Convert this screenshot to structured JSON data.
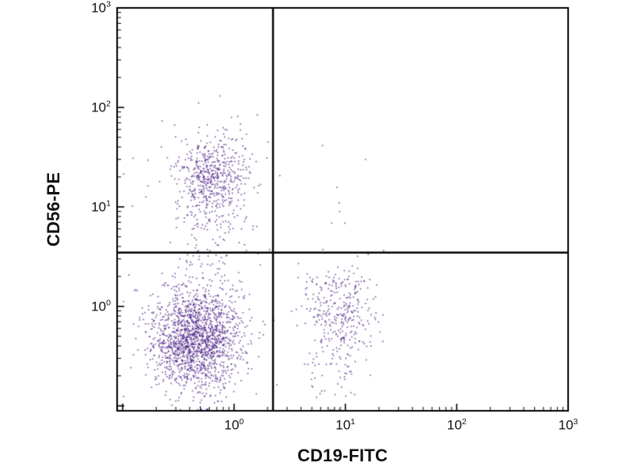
{
  "figure": {
    "background": "#ffffff",
    "dot_color": "#4a1d85",
    "axis_color": "#000000"
  },
  "chart_data": {
    "type": "scatter",
    "title": "",
    "xlabel": "CD19-FITC",
    "ylabel": "CD56-PE",
    "x_scale": "log10",
    "y_scale": "log10",
    "x_range_log": [
      -1.05,
      3
    ],
    "y_range_log": [
      -1.05,
      3
    ],
    "tick_base": "10",
    "x_tick_exponents": [
      0,
      1,
      2,
      3
    ],
    "y_tick_exponents": [
      0,
      1,
      2,
      3
    ],
    "grid": false,
    "legend": "none",
    "quadrant_gate_log": {
      "x": 0.35,
      "y": 0.54
    },
    "populations": [
      {
        "name": "CD19-neg CD56-neg lymphocytes (lower left dense cluster)",
        "dist": "gaussian",
        "n": 1700,
        "center_log": [
          -0.33,
          -0.33
        ],
        "sigma_log": [
          0.21,
          0.26
        ]
      },
      {
        "name": "CD56-pos NK cells (upper left cluster ~x0.65 y20)",
        "dist": "gaussian",
        "n": 520,
        "center_log": [
          -0.19,
          1.3
        ],
        "sigma_log": [
          0.17,
          0.22
        ]
      },
      {
        "name": "NK dim tail between clusters",
        "dist": "gaussian",
        "n": 110,
        "center_log": [
          -0.22,
          0.72
        ],
        "sigma_log": [
          0.16,
          0.28
        ]
      },
      {
        "name": "CD19-pos B cells (lower right cluster ~x9 y1)",
        "dist": "gaussian",
        "n": 300,
        "center_log": [
          0.95,
          -0.02
        ],
        "sigma_log": [
          0.16,
          0.22
        ]
      },
      {
        "name": "B cell low tail",
        "dist": "gaussian",
        "n": 70,
        "center_log": [
          0.9,
          -0.55
        ],
        "sigma_log": [
          0.17,
          0.3
        ]
      },
      {
        "name": "sparse background left half",
        "dist": "uniform",
        "n": 55,
        "x_range_log": [
          -1.0,
          0.33
        ],
        "y_range_log": [
          -1.0,
          2.05
        ]
      },
      {
        "name": "rare events upper right of gate",
        "dist": "uniform",
        "n": 8,
        "x_range_log": [
          0.4,
          1.35
        ],
        "y_range_log": [
          0.6,
          1.7
        ]
      }
    ]
  }
}
